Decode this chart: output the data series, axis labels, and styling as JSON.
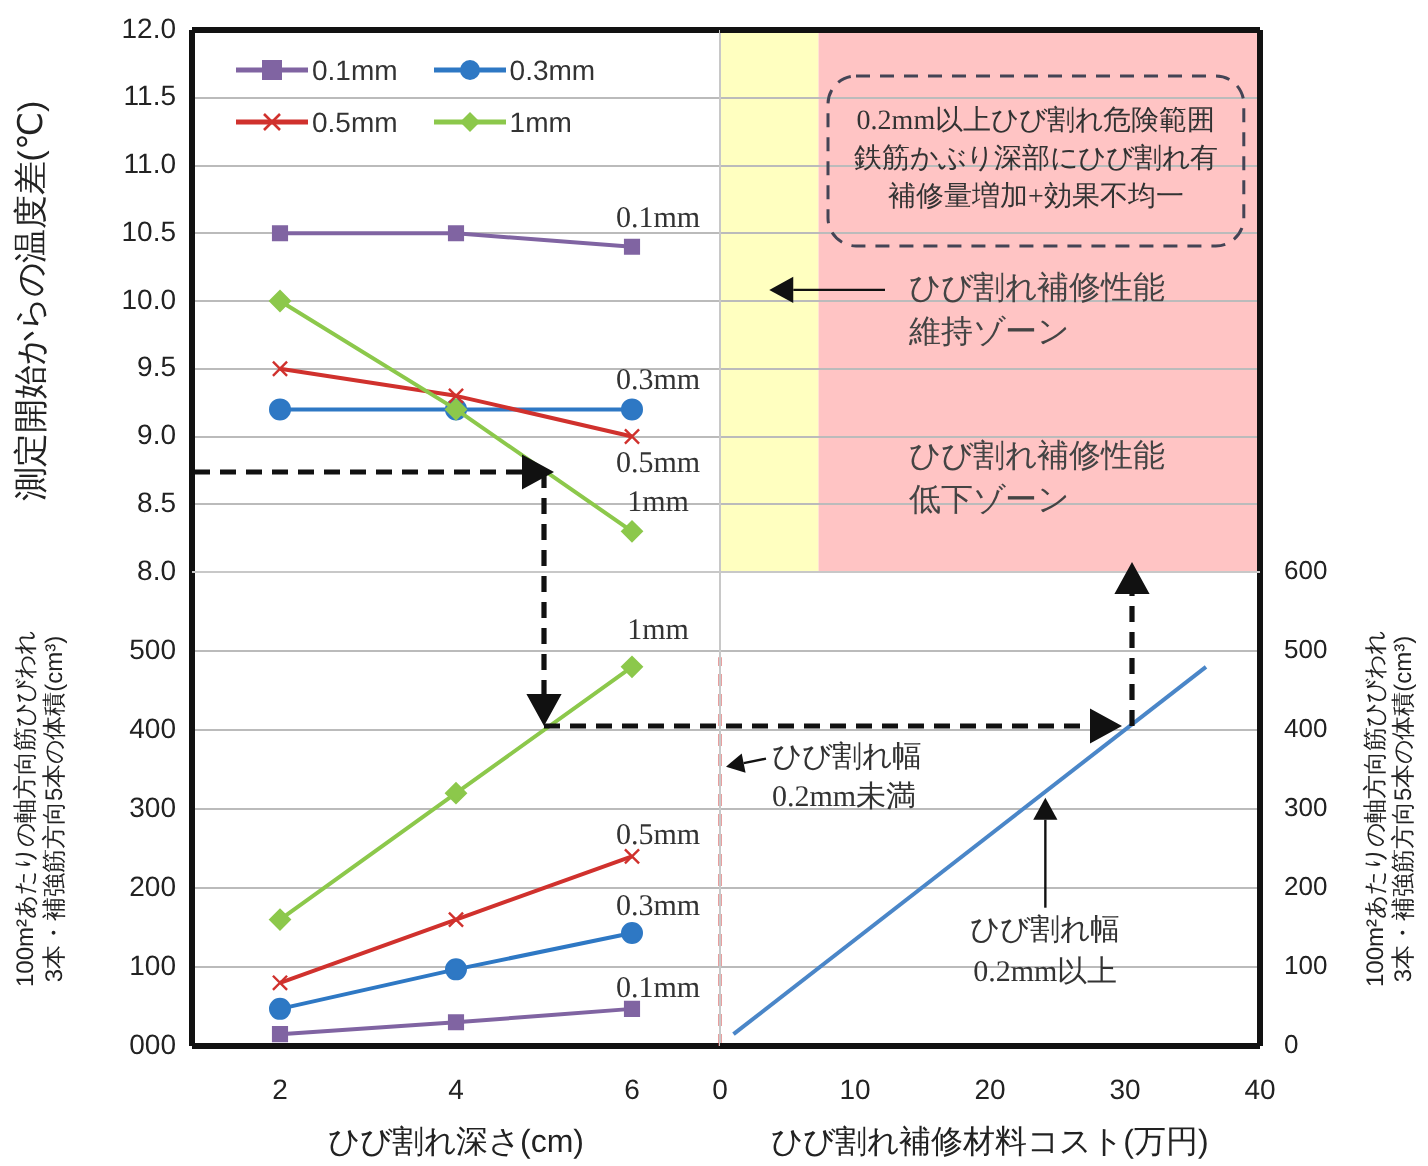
{
  "chart_data": [
    {
      "type": "line",
      "ylabel": "測定開始からの温度差(℃)",
      "x": [
        2,
        4,
        6
      ],
      "xlim": [
        1,
        7
      ],
      "xticks": [
        2,
        4,
        6
      ],
      "ylim": [
        8,
        12
      ],
      "yticks": [
        {
          "value": 8,
          "label": "8.0"
        },
        {
          "value": 8.5,
          "label": "8.5"
        },
        {
          "value": 9,
          "label": "9.0"
        },
        {
          "value": 9.5,
          "label": "9.5"
        },
        {
          "value": 10,
          "label": "10.0"
        },
        {
          "value": 10.5,
          "label": "10.5"
        },
        {
          "value": 11,
          "label": "11.0"
        },
        {
          "value": 11.5,
          "label": "11.5"
        },
        {
          "value": 12,
          "label": "12.0"
        }
      ],
      "tick_labels": "y",
      "grid": "y",
      "legend": "top left",
      "series": [
        {
          "name": "0.1mm",
          "color": "#8064a2",
          "marker": "square",
          "values": [
            10.5,
            10.5,
            10.4
          ]
        },
        {
          "name": "0.3mm",
          "color": "#2e78c4",
          "marker": "circle",
          "values": [
            9.2,
            9.2,
            9.2
          ]
        },
        {
          "name": "0.5mm",
          "color": "#d0312d",
          "marker": "cross",
          "values": [
            9.5,
            9.3,
            9.0
          ]
        },
        {
          "name": "1mm",
          "color": "#8cc84b",
          "marker": "diamond",
          "values": [
            10.0,
            9.2,
            8.3
          ]
        }
      ],
      "annotations": [
        "0.1mm",
        "0.3mm",
        "0.5mm",
        "1mm"
      ]
    },
    {
      "type": "line",
      "xlim": [
        0,
        40
      ],
      "xticks": [
        0,
        10,
        20,
        30,
        40
      ],
      "ylim": [
        8,
        12
      ],
      "yticks": [
        8,
        8.5,
        9,
        9.5,
        10,
        10.5,
        11,
        11.5,
        12
      ],
      "tick_labels": false,
      "grid": "y",
      "bands": [
        {
          "axis": "x",
          "from": 0,
          "to": 7.3,
          "label": "ひび割れ補修性能維持ゾーン",
          "color": "#ffffc0"
        },
        {
          "axis": "x",
          "from": 7.3,
          "to": 40,
          "label": "ひび割れ補修性能低下ゾーン",
          "color": "#ffc4c4"
        }
      ],
      "annotations": [
        "0.2mm以上ひび割れ危険範囲鉄筋かぶり深部にひび割れ有補修量増加+効果不均一"
      ]
    },
    {
      "type": "line",
      "xlabel": "ひび割れ深さ(cm)",
      "ylabel": "100m²あたりの軸方向筋ひびわれ\n3本・補強筋方向5本の体積(cm³)",
      "x": [
        2,
        4,
        6
      ],
      "xlim": [
        1,
        7
      ],
      "xticks": [
        2,
        4,
        6
      ],
      "ylim": [
        0,
        600
      ],
      "yticks": [
        {
          "value": 0,
          "label": "000"
        },
        100,
        200,
        300,
        400,
        500
      ],
      "grid": "y",
      "series": [
        {
          "color": "#8064a2",
          "marker": "square",
          "values": [
            15,
            30,
            47
          ]
        },
        {
          "color": "#2e78c4",
          "marker": "circle",
          "values": [
            47,
            97,
            143
          ]
        },
        {
          "color": "#d0312d",
          "marker": "cross",
          "values": [
            80,
            160,
            240
          ]
        },
        {
          "color": "#8cc84b",
          "marker": "diamond",
          "values": [
            160,
            320,
            480
          ]
        }
      ],
      "annotations": [
        "0.1mm",
        "0.3mm",
        "0.5mm",
        "1mm"
      ]
    },
    {
      "type": "line",
      "xlabel": "ひび割れ補修材料コスト(万円)",
      "y2label": "100m²あたりの軸方向筋ひびわれ\n3本・補強筋方向5本の体積(cm³)",
      "xlim": [
        0,
        40
      ],
      "xticks": [
        0,
        10,
        20,
        30,
        40
      ],
      "y2lim": [
        0,
        600
      ],
      "y2ticks": [
        0,
        100,
        200,
        300,
        400,
        500,
        600
      ],
      "grid": "y",
      "series": [
        {
          "color": "#4a86c8",
          "marker": "none",
          "axis": "y2",
          "x": [
            1,
            36
          ],
          "values": [
            15,
            480
          ]
        }
      ],
      "ref_lines": [
        {
          "axis": "x",
          "value": 0,
          "label": "ひび割れ幅0.2mm未満",
          "color": "#d04040",
          "line_style": "dashed"
        }
      ],
      "annotations": [
        "ひび割れ幅0.2mm以上"
      ]
    }
  ]
}
